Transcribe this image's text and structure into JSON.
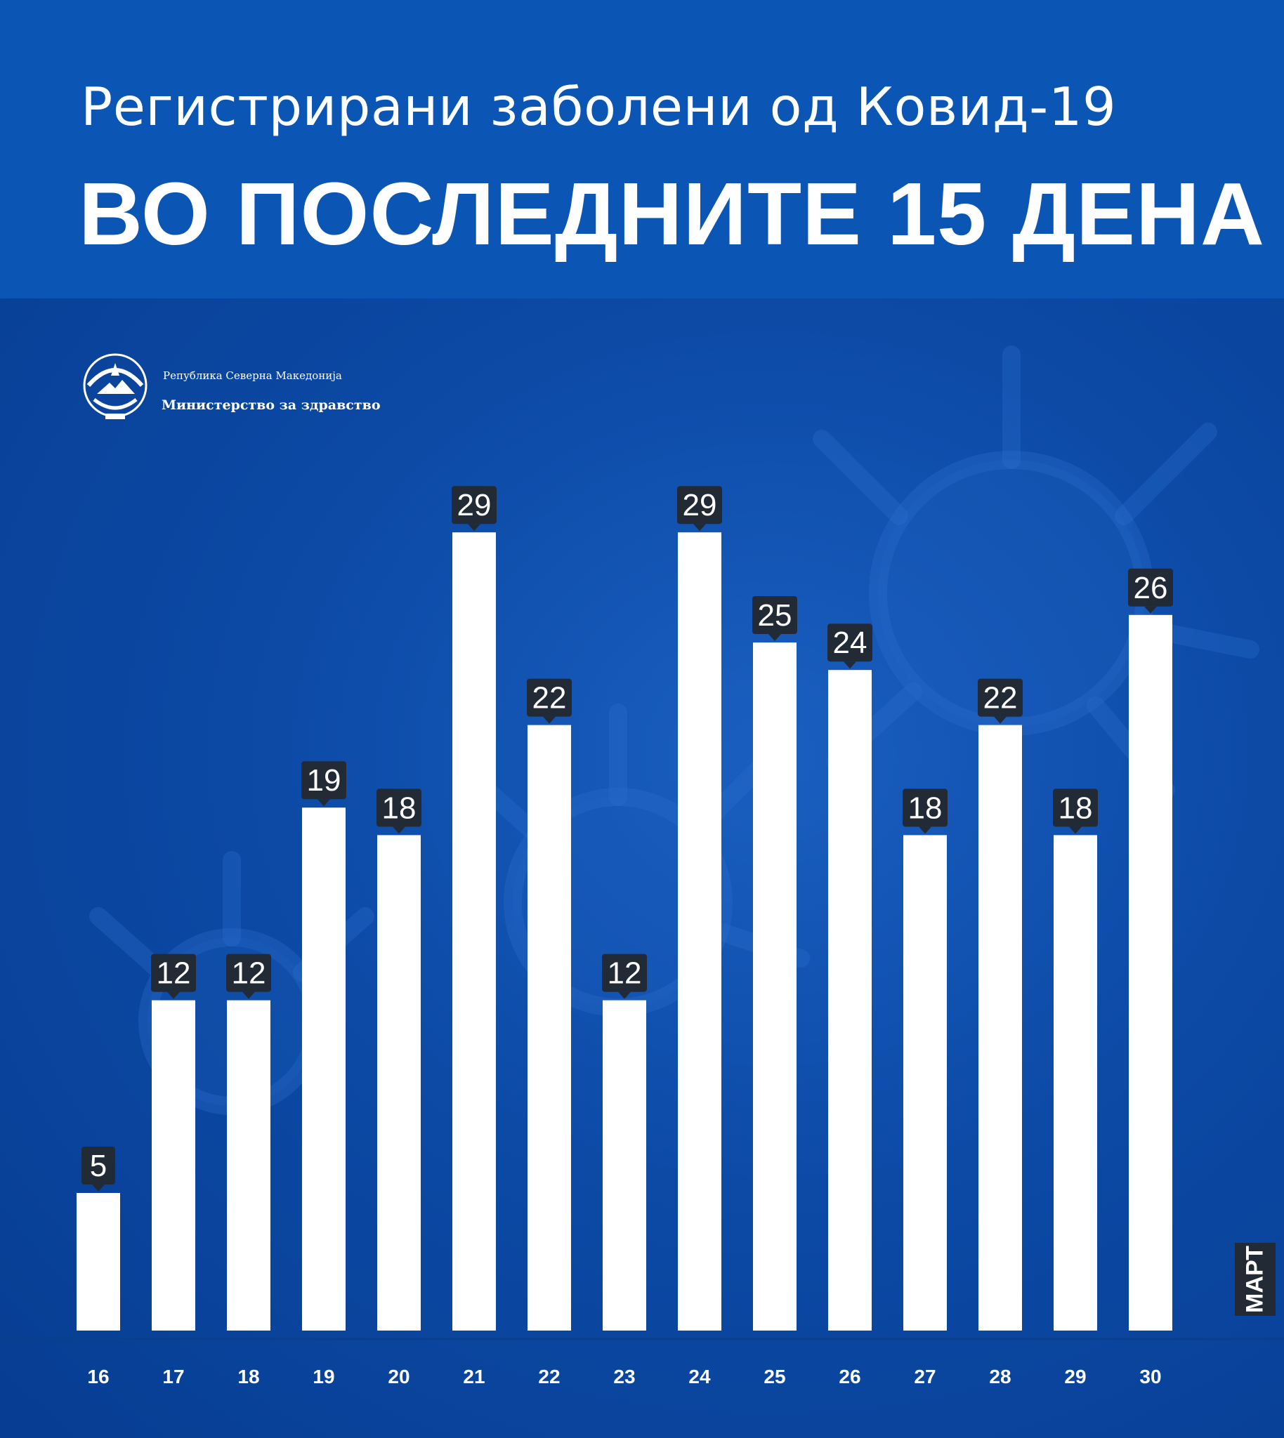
{
  "header": {
    "subtitle": "Регистрирани заболени од Ковид-19",
    "title": "ВО ПОСЛЕДНИТЕ 15 ДЕНА"
  },
  "logo": {
    "line1": "Република Северна Македонија",
    "line2": "Министерство за здравство"
  },
  "month_label": "МАРТ",
  "colors": {
    "background": "#0a4eab",
    "header": "#0b56b5",
    "bar": "#ffffff",
    "label_bg": "#222a36",
    "text": "#ffffff"
  },
  "chart_data": {
    "type": "bar",
    "title": "Регистрирани заболени од Ковид-19 ВО ПОСЛЕДНИТЕ 15 ДЕНА",
    "xlabel": "МАРТ",
    "ylabel": "",
    "categories": [
      "16",
      "17",
      "18",
      "19",
      "20",
      "21",
      "22",
      "23",
      "24",
      "25",
      "26",
      "27",
      "28",
      "29",
      "30"
    ],
    "values": [
      5,
      12,
      12,
      19,
      18,
      29,
      22,
      12,
      29,
      25,
      24,
      18,
      22,
      18,
      26
    ],
    "ylim": [
      0,
      29
    ],
    "data_labels": true,
    "grid": false
  }
}
